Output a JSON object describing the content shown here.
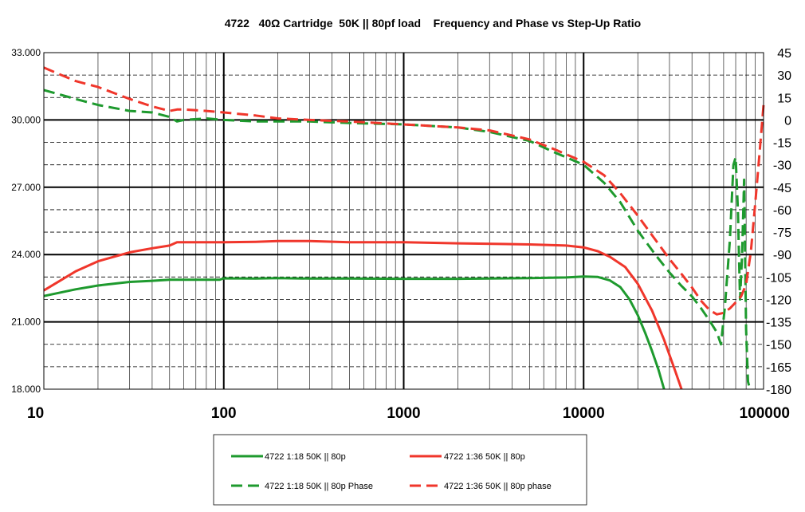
{
  "chart_data": {
    "type": "line",
    "title": "4722   40Ω Cartridge  50K || 80pf load    Frequency and Phase vs Step-Up Ratio",
    "x_scale": "log",
    "xlim": [
      10,
      100000
    ],
    "x_ticks": [
      "10",
      "100",
      "1000",
      "10000",
      "100000"
    ],
    "ylim": [
      18.0,
      33.0
    ],
    "y_ticks": [
      "18.000",
      "21.000",
      "24.000",
      "27.000",
      "30.000",
      "33.000"
    ],
    "y2lim": [
      -180,
      45
    ],
    "y2_ticks": [
      "45",
      "30",
      "15",
      "0",
      "-15",
      "-30",
      "-45",
      "-60",
      "-75",
      "-90",
      "-105",
      "-120",
      "-135",
      "-150",
      "-165",
      "-180"
    ],
    "grid": true,
    "legend_position": "bottom",
    "series": [
      {
        "name": "4722 1:18 50K || 80p",
        "axis": "left",
        "style": "solid",
        "color": "#1e9a2e",
        "x": [
          10,
          15,
          20,
          30,
          40,
          50,
          60,
          80,
          95,
          100,
          150,
          200,
          300,
          500,
          1000,
          2000,
          5000,
          8000,
          10000,
          12000,
          14000,
          16000,
          18000,
          20000,
          22000,
          24000,
          26000,
          28000
        ],
        "y": [
          22.15,
          22.45,
          22.62,
          22.78,
          22.83,
          22.88,
          22.88,
          22.88,
          22.88,
          22.94,
          22.93,
          22.95,
          22.93,
          22.93,
          22.92,
          22.92,
          22.95,
          22.98,
          23.02,
          23.0,
          22.85,
          22.55,
          22.0,
          21.3,
          20.5,
          19.7,
          18.9,
          18.0
        ]
      },
      {
        "name": "4722 1:36 50K || 80p",
        "axis": "left",
        "style": "solid",
        "color": "#f0362b",
        "x": [
          10,
          15,
          20,
          30,
          40,
          50,
          55,
          60,
          80,
          100,
          150,
          200,
          300,
          500,
          1000,
          2000,
          5000,
          8000,
          10000,
          12000,
          14000,
          17000,
          20000,
          24000,
          28000,
          32000,
          35000
        ],
        "y": [
          22.4,
          23.25,
          23.7,
          24.1,
          24.28,
          24.4,
          24.55,
          24.55,
          24.55,
          24.55,
          24.57,
          24.6,
          24.6,
          24.55,
          24.55,
          24.5,
          24.45,
          24.4,
          24.32,
          24.15,
          23.9,
          23.45,
          22.7,
          21.5,
          20.2,
          18.9,
          18.0
        ]
      },
      {
        "name": "4722 1:18 50K || 80p Phase",
        "axis": "right",
        "style": "dashed",
        "color": "#1e9a2e",
        "x": [
          10,
          15,
          20,
          30,
          40,
          50,
          55,
          60,
          80,
          100,
          150,
          200,
          300,
          500,
          1000,
          2000,
          3000,
          5000,
          7000,
          10000,
          13000,
          16000,
          20000,
          25000,
          30000,
          35000,
          40000,
          45000,
          50000,
          55000,
          58000,
          61000,
          65000,
          68000,
          70000,
          72000,
          74000,
          76000,
          78000,
          80000,
          82000,
          84000
        ],
        "y": [
          20,
          14,
          10,
          6,
          5,
          2,
          -1,
          0,
          1,
          0,
          -1,
          -1,
          -1,
          -2,
          -3,
          -5,
          -8,
          -14,
          -22,
          -30,
          -42,
          -55,
          -74,
          -90,
          -102,
          -111,
          -118,
          -126,
          -134,
          -142,
          -150,
          -125,
          -80,
          -30,
          -25,
          -60,
          -120,
          -90,
          -40,
          -140,
          -175,
          -180
        ]
      },
      {
        "name": "4722 1:36 50K || 80p phase",
        "axis": "right",
        "style": "dashed",
        "color": "#f0362b",
        "x": [
          10,
          15,
          20,
          30,
          40,
          50,
          55,
          60,
          80,
          100,
          150,
          200,
          300,
          500,
          1000,
          2000,
          3000,
          5000,
          7000,
          10000,
          13000,
          16000,
          20000,
          25000,
          30000,
          35000,
          40000,
          45000,
          50000,
          55000,
          60000,
          65000,
          70000,
          75000,
          80000,
          85000,
          90000,
          95000,
          100000
        ],
        "y": [
          35,
          26,
          22,
          14,
          9,
          6,
          7,
          7,
          6,
          5,
          3,
          1,
          0,
          -1,
          -3,
          -5,
          -7,
          -13,
          -20,
          -28,
          -37,
          -49,
          -64,
          -80,
          -93,
          -103,
          -112,
          -121,
          -127,
          -130,
          -129,
          -126,
          -122,
          -118,
          -110,
          -88,
          -55,
          -22,
          10
        ]
      }
    ]
  }
}
